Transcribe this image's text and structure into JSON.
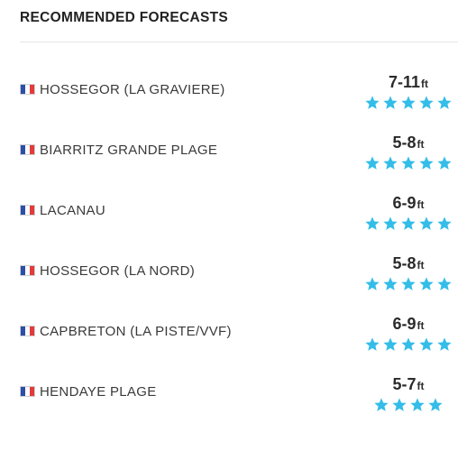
{
  "header": {
    "title": "RECOMMENDED FORECASTS"
  },
  "colors": {
    "star": "#33bde8",
    "flag_blue": "#2c4fa8",
    "flag_white": "#ffffff",
    "flag_red": "#e23b3b"
  },
  "forecasts": [
    {
      "flag_icon": "france-flag-icon",
      "spot": "HOSSEGOR (LA GRAVIERE)",
      "height": "7-11",
      "unit": "ft",
      "stars": 5
    },
    {
      "flag_icon": "france-flag-icon",
      "spot": "BIARRITZ GRANDE PLAGE",
      "height": "5-8",
      "unit": "ft",
      "stars": 5
    },
    {
      "flag_icon": "france-flag-icon",
      "spot": "LACANAU",
      "height": "6-9",
      "unit": "ft",
      "stars": 5
    },
    {
      "flag_icon": "france-flag-icon",
      "spot": "HOSSEGOR (LA NORD)",
      "height": "5-8",
      "unit": "ft",
      "stars": 5
    },
    {
      "flag_icon": "france-flag-icon",
      "spot": "CAPBRETON (LA PISTE/VVF)",
      "height": "6-9",
      "unit": "ft",
      "stars": 5
    },
    {
      "flag_icon": "france-flag-icon",
      "spot": "HENDAYE PLAGE",
      "height": "5-7",
      "unit": "ft",
      "stars": 4
    }
  ]
}
